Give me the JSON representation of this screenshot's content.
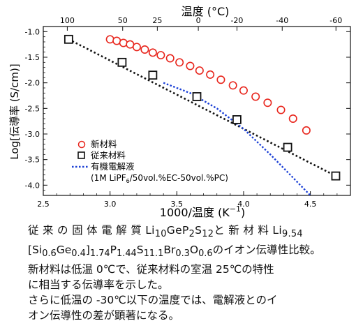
{
  "chart_data": {
    "type": "scatter",
    "xlabel_pre": "1000/温度 (K",
    "xlabel_sup": "−1",
    "xlabel_post": ")",
    "ylabel": "Log[伝導率 (S/cm)]",
    "top_axis_label": "温度 (°C)",
    "xlim": [
      2.5,
      4.8
    ],
    "ylim": [
      -4.2,
      -0.9
    ],
    "x_ticks": [
      "2.5",
      "3.0",
      "3.5",
      "4.0",
      "4.5"
    ],
    "x_tick_values": [
      2.5,
      3.0,
      3.5,
      4.0,
      4.5
    ],
    "y_ticks": [
      "-1.0",
      "-1.5",
      "-2.0",
      "-2.5",
      "-3.0",
      "-3.5",
      "-4.0"
    ],
    "y_tick_values": [
      -1.0,
      -1.5,
      -2.0,
      -2.5,
      -3.0,
      -3.5,
      -4.0
    ],
    "top_ticks": [
      "100",
      "50",
      "25",
      "0",
      "-20",
      "-40",
      "-60"
    ],
    "top_tick_celsius": [
      100,
      50,
      25,
      0,
      -20,
      -40,
      -60
    ],
    "legend": {
      "new_material": "新材料",
      "conventional": "従来材料",
      "organic_line1": "有機電解液",
      "organic_line2_pre": "(1M LiPF",
      "organic_line2_sub": "6",
      "organic_line2_post": "/50vol.%EC-50vol.%PC)"
    },
    "series": [
      {
        "name": "新材料",
        "marker": "circle",
        "color": "#e8251c",
        "x": [
          3.0,
          3.05,
          3.1,
          3.15,
          3.2,
          3.26,
          3.32,
          3.38,
          3.45,
          3.52,
          3.6,
          3.67,
          3.75,
          3.83,
          3.92,
          4.0,
          4.09,
          4.18,
          4.28,
          4.37,
          4.47
        ],
        "y": [
          -1.15,
          -1.18,
          -1.22,
          -1.25,
          -1.3,
          -1.35,
          -1.41,
          -1.46,
          -1.52,
          -1.6,
          -1.67,
          -1.76,
          -1.84,
          -1.94,
          -2.05,
          -2.15,
          -2.27,
          -2.39,
          -2.53,
          -2.7,
          -2.93
        ]
      },
      {
        "name": "従来材料",
        "marker": "square",
        "color": "#111111",
        "x": [
          2.69,
          3.09,
          3.32,
          3.65,
          3.95,
          4.33,
          4.69
        ],
        "y": [
          -1.15,
          -1.6,
          -1.85,
          -2.27,
          -2.72,
          -3.26,
          -3.82
        ]
      },
      {
        "name": "従来材料",
        "marker": "trend",
        "color": "#111111",
        "x": [
          2.69,
          4.69
        ],
        "y": [
          -1.15,
          -3.82
        ]
      },
      {
        "name": "有機電解液",
        "marker": "dotted-line",
        "color": "#1a3fd6",
        "x": [
          3.4,
          3.6,
          3.8,
          4.0,
          4.2,
          4.35,
          4.5
        ],
        "y": [
          -2.0,
          -2.2,
          -2.5,
          -2.9,
          -3.4,
          -3.8,
          -4.2
        ]
      }
    ]
  },
  "caption": {
    "line1_a": "従 来 の 固 体 電 解 質 Li",
    "line1_b": "10",
    "line1_c": "GeP",
    "line1_d": "2",
    "line1_e": "S",
    "line1_f": "12",
    "line1_g": "と 新 材 料 Li",
    "line1_h": "9.54",
    "line2_a": "[Si",
    "line2_b": "0.6",
    "line2_c": "Ge",
    "line2_d": "0.4",
    "line2_e": "]",
    "line2_f": "1.74",
    "line2_g": "P",
    "line2_h": "1.44",
    "line2_i": "S",
    "line2_j": "11.1",
    "line2_k": "Br",
    "line2_l": "0.3",
    "line2_m": "O",
    "line2_n": "0.6",
    "line2_o": "のイオン伝導性比較。",
    "line3": "新材料は低温 0℃で、従来材料の室温 25℃の特性",
    "line4": "に相当する伝導率を示した。",
    "line5": "さらに低温の -30℃以下の温度では、電解液とのイ",
    "line6": "オン伝導性の差が顕著になる。"
  }
}
